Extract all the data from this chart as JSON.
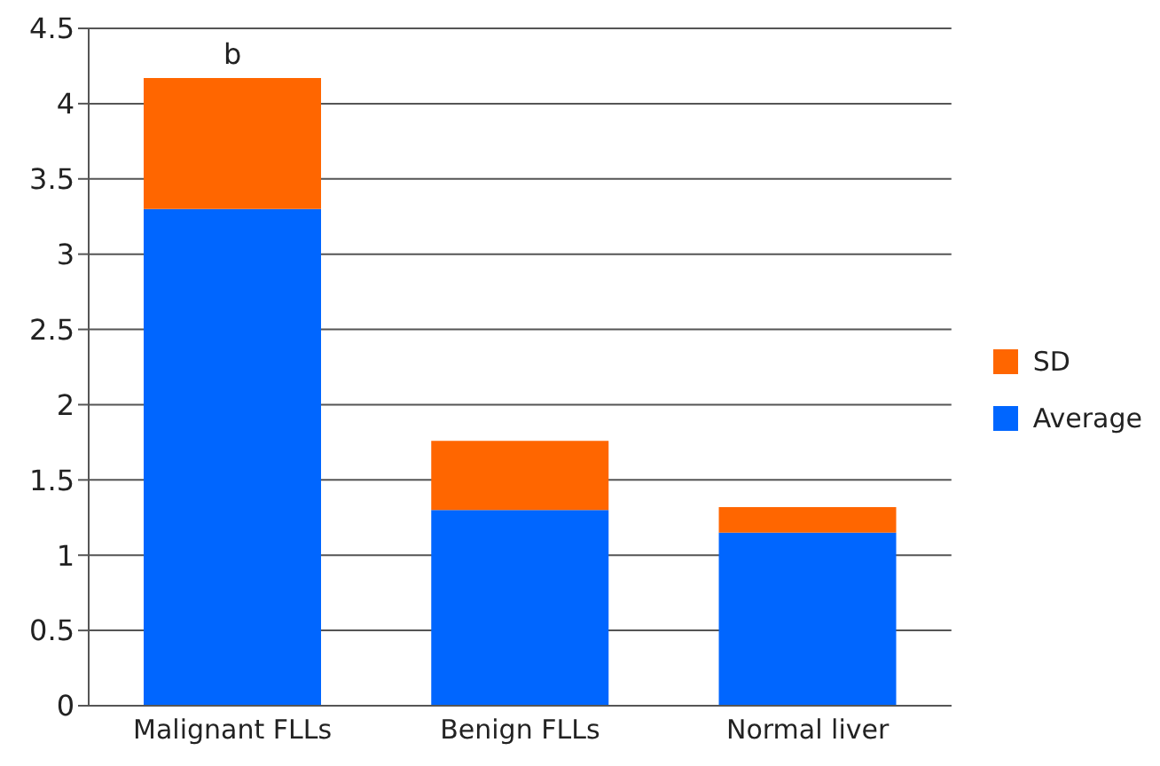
{
  "chart_data": {
    "type": "bar",
    "stacked": true,
    "categories": [
      "Malignant FLLs",
      "Benign FLLs",
      "Normal liver"
    ],
    "series": [
      {
        "name": "Average",
        "color": "#0066ff",
        "values": [
          3.3,
          1.3,
          1.15
        ]
      },
      {
        "name": "SD",
        "color": "#ff6600",
        "values": [
          0.87,
          0.46,
          0.17
        ]
      }
    ],
    "ylim": [
      0,
      4.5
    ],
    "yticks": [
      0,
      0.5,
      1,
      1.5,
      2,
      2.5,
      3,
      3.5,
      4,
      4.5
    ],
    "grid": "y",
    "legend": "right",
    "annotations": [
      {
        "text": "b",
        "x": "Malignant FLLs",
        "y": 4.17
      }
    ]
  }
}
